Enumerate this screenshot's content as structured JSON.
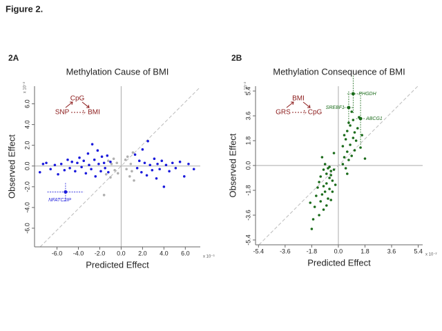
{
  "figure_title": "Figure 2.",
  "chart_data": [
    {
      "type": "scatter",
      "panel": "2A",
      "title": "Methylation Cause of BMI",
      "x_label": "Predicted Effect",
      "y_label": "Observed Effect",
      "x_multiplier": "x 10⁻³",
      "y_multiplier": "x 10⁻²",
      "diagram": {
        "top": "CpG",
        "left": "SNP",
        "right": "BMI"
      },
      "xlim": [
        -8.1,
        7.4
      ],
      "ylim": [
        -7.8,
        7.7
      ],
      "xticks": [
        {
          "value": -6,
          "label": "-6.0"
        },
        {
          "value": -4,
          "label": "-4.0"
        },
        {
          "value": -2,
          "label": "-2.0"
        },
        {
          "value": 0,
          "label": "0.0"
        },
        {
          "value": 2,
          "label": "2.0"
        },
        {
          "value": 4,
          "label": "4.0"
        },
        {
          "value": 6,
          "label": "6.0"
        }
      ],
      "yticks": [
        {
          "value": -6,
          "label": "-6.0"
        },
        {
          "value": -4,
          "label": "-4.0"
        },
        {
          "value": -2,
          "label": "-2.0"
        },
        {
          "value": 0,
          "label": "0.0"
        },
        {
          "value": 2,
          "label": "2.0"
        },
        {
          "value": 4,
          "label": "4.0"
        },
        {
          "value": 6,
          "label": "6.0"
        }
      ],
      "series": [
        {
          "color": "#b0b0b0",
          "x": [
            -1.4,
            -1.2,
            -1.0,
            -0.9,
            -0.7,
            -0.6,
            -0.4,
            -0.3,
            0.4,
            0.5,
            0.6,
            0.8,
            0.9,
            1.0,
            1.1,
            -1.6,
            1.2
          ],
          "y": [
            -0.8,
            0.5,
            -1.1,
            0.2,
            0.7,
            -0.4,
            0.3,
            -0.7,
            0.6,
            -0.3,
            0.9,
            -1.0,
            0.2,
            -0.5,
            1.3,
            -2.8,
            -1.4
          ]
        },
        {
          "color": "#1a1adc",
          "x": [
            -7.6,
            -7.3,
            -7.0,
            -6.6,
            -6.2,
            -5.9,
            -5.6,
            -5.3,
            -5.0,
            -4.8,
            -4.6,
            -4.3,
            -4.1,
            -3.9,
            -3.7,
            -3.5,
            -3.3,
            -3.1,
            -3.0,
            -2.8,
            -2.7,
            -2.5,
            -2.4,
            -2.2,
            -2.1,
            -1.9,
            -1.8,
            -1.6,
            -1.5,
            -1.3,
            -1.2,
            -1.0,
            1.3,
            1.5,
            1.7,
            1.9,
            2.0,
            2.2,
            2.4,
            2.5,
            2.7,
            2.9,
            3.1,
            3.3,
            3.4,
            3.6,
            3.8,
            4.0,
            4.2,
            4.5,
            4.8,
            5.1,
            5.5,
            5.9,
            6.3,
            6.8
          ],
          "y": [
            -0.6,
            0.2,
            0.3,
            -0.3,
            0.1,
            -0.8,
            0.2,
            -0.4,
            0.6,
            -0.2,
            0.4,
            -0.5,
            0.3,
            0.8,
            -0.1,
            0.5,
            -0.7,
            1.2,
            0.1,
            -0.3,
            2.1,
            0.6,
            -1.0,
            1.5,
            0.2,
            -0.5,
            0.9,
            0.3,
            -0.2,
            1.0,
            -0.6,
            0.4,
            1.1,
            -0.2,
            0.5,
            -0.6,
            1.6,
            0.3,
            -0.9,
            2.4,
            0.1,
            -0.4,
            0.7,
            -1.2,
            0.2,
            -0.3,
            0.5,
            -2.0,
            0.1,
            -0.5,
            0.3,
            -0.2,
            0.4,
            -1.0,
            0.2,
            -0.3
          ]
        }
      ],
      "highlights": [
        {
          "label": "NFATC2IP",
          "color": "#1a1adc",
          "x": -5.2,
          "y": -2.5,
          "x_err": 1.7,
          "y_err": 0.9
        }
      ]
    },
    {
      "type": "scatter",
      "panel": "2B",
      "title": "Methylation Consequence of BMI",
      "x_label": "Predicted Effect",
      "y_label": "Observed Effect",
      "x_multiplier": "x 10⁻²",
      "y_multiplier": "x 10⁻²",
      "diagram": {
        "top": "BMI",
        "left": "GRS",
        "right": "CpG"
      },
      "xlim": [
        -5.6,
        5.7
      ],
      "ylim": [
        -5.75,
        5.75
      ],
      "xticks": [
        -5.4,
        -3.6,
        -1.8,
        {
          "value": 0,
          "label": "0.0"
        },
        1.8,
        3.6,
        5.4
      ],
      "yticks": [
        -5.4,
        -3.6,
        -1.8,
        {
          "value": 0,
          "label": "0.0"
        },
        1.8,
        3.6,
        5.4
      ],
      "series": [
        {
          "color": "#1a6b1a",
          "x": [
            -1.1,
            -1.0,
            -0.9,
            -0.8,
            -0.7,
            -0.6,
            -0.5,
            -0.4,
            -0.3,
            -1.2,
            -1.3,
            -1.0,
            -0.8,
            -0.6,
            -0.5,
            -0.9,
            -1.1,
            -1.4,
            -0.7,
            -1.2,
            -1.5,
            -0.4,
            -1.6,
            -1.0,
            -1.7,
            -1.3,
            -1.8,
            -0.8,
            -0.6,
            -0.3,
            -0.2,
            -1.9,
            -0.5,
            0.3,
            0.4,
            0.5,
            0.6,
            0.7,
            0.8,
            0.9,
            1.0,
            0.5,
            0.6,
            0.8,
            1.0,
            0.7,
            1.1,
            1.2,
            1.3,
            1.4,
            0.9,
            1.6,
            1.1,
            0.4,
            1.5,
            0.3,
            1.8,
            0.6
          ],
          "y": [
            0.6,
            -0.3,
            0.1,
            -0.6,
            -0.2,
            -0.9,
            -0.4,
            -1.1,
            -0.3,
            -0.8,
            -1.2,
            -1.5,
            -1.3,
            -1.7,
            -0.7,
            -1.9,
            -2.1,
            -1.6,
            -2.4,
            -2.6,
            -2.2,
            -1.9,
            -3.0,
            -3.2,
            -3.9,
            -3.6,
            -4.6,
            -2.9,
            -0.1,
            0.9,
            -1.4,
            -2.7,
            -2.5,
            0.1,
            0.6,
            -0.2,
            1.0,
            0.4,
            1.5,
            0.7,
            2.0,
            1.9,
            2.5,
            2.9,
            3.3,
            3.1,
            2.4,
            1.8,
            2.7,
            3.5,
            3.9,
            2.2,
            1.1,
            2.2,
            1.3,
            1.4,
            0.5,
            -0.6
          ]
        }
      ],
      "highlights": [
        {
          "label": "PHGDH",
          "color": "#1a6b1a",
          "x": 1.0,
          "y": 5.2,
          "x_err": 0.4,
          "y_err": 1.4
        },
        {
          "label": "SREBF1",
          "color": "#1a6b1a",
          "x": 0.7,
          "y": 4.2,
          "x_err": 0.3,
          "y_err": 1.2
        },
        {
          "label": "ABCG1",
          "color": "#1a6b1a",
          "x": 1.5,
          "y": 3.4,
          "x_err": 0.3,
          "y_err": 1.9
        }
      ]
    }
  ]
}
